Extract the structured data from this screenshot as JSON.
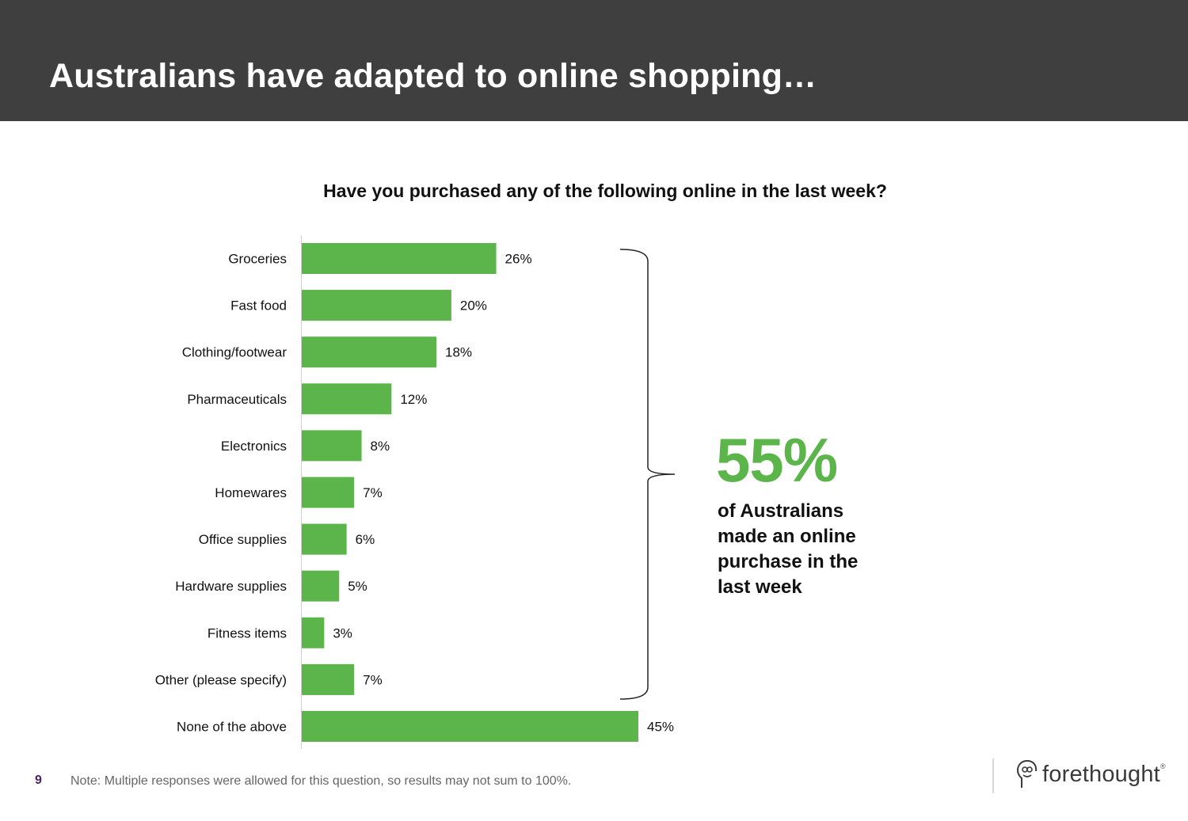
{
  "header": {
    "title": "Australians have adapted to online shopping…"
  },
  "question": "Have you purchased any of the following online in the last week?",
  "chart_data": {
    "type": "bar",
    "orientation": "horizontal",
    "categories": [
      "Groceries",
      "Fast food",
      "Clothing/footwear",
      "Pharmaceuticals",
      "Electronics",
      "Homewares",
      "Office supplies",
      "Hardware supplies",
      "Fitness items",
      "Other (please specify)",
      "None of the above"
    ],
    "values": [
      26,
      20,
      18,
      12,
      8,
      7,
      6,
      5,
      3,
      7,
      45
    ],
    "value_labels": [
      "26%",
      "20%",
      "18%",
      "12%",
      "8%",
      "7%",
      "6%",
      "5%",
      "3%",
      "7%",
      "45%"
    ],
    "xlim": [
      0,
      45
    ],
    "grid": false,
    "bar_color": "#5cb54a"
  },
  "callout": {
    "percent": "55%",
    "text": "of Australians made an online purchase in the last week",
    "color": "#5cb54a"
  },
  "footer": {
    "page_number": "9",
    "note": "Note: Multiple responses were allowed for this question, so results may not sum to 100%."
  },
  "logo": {
    "text": "forethought",
    "reg": "®"
  }
}
